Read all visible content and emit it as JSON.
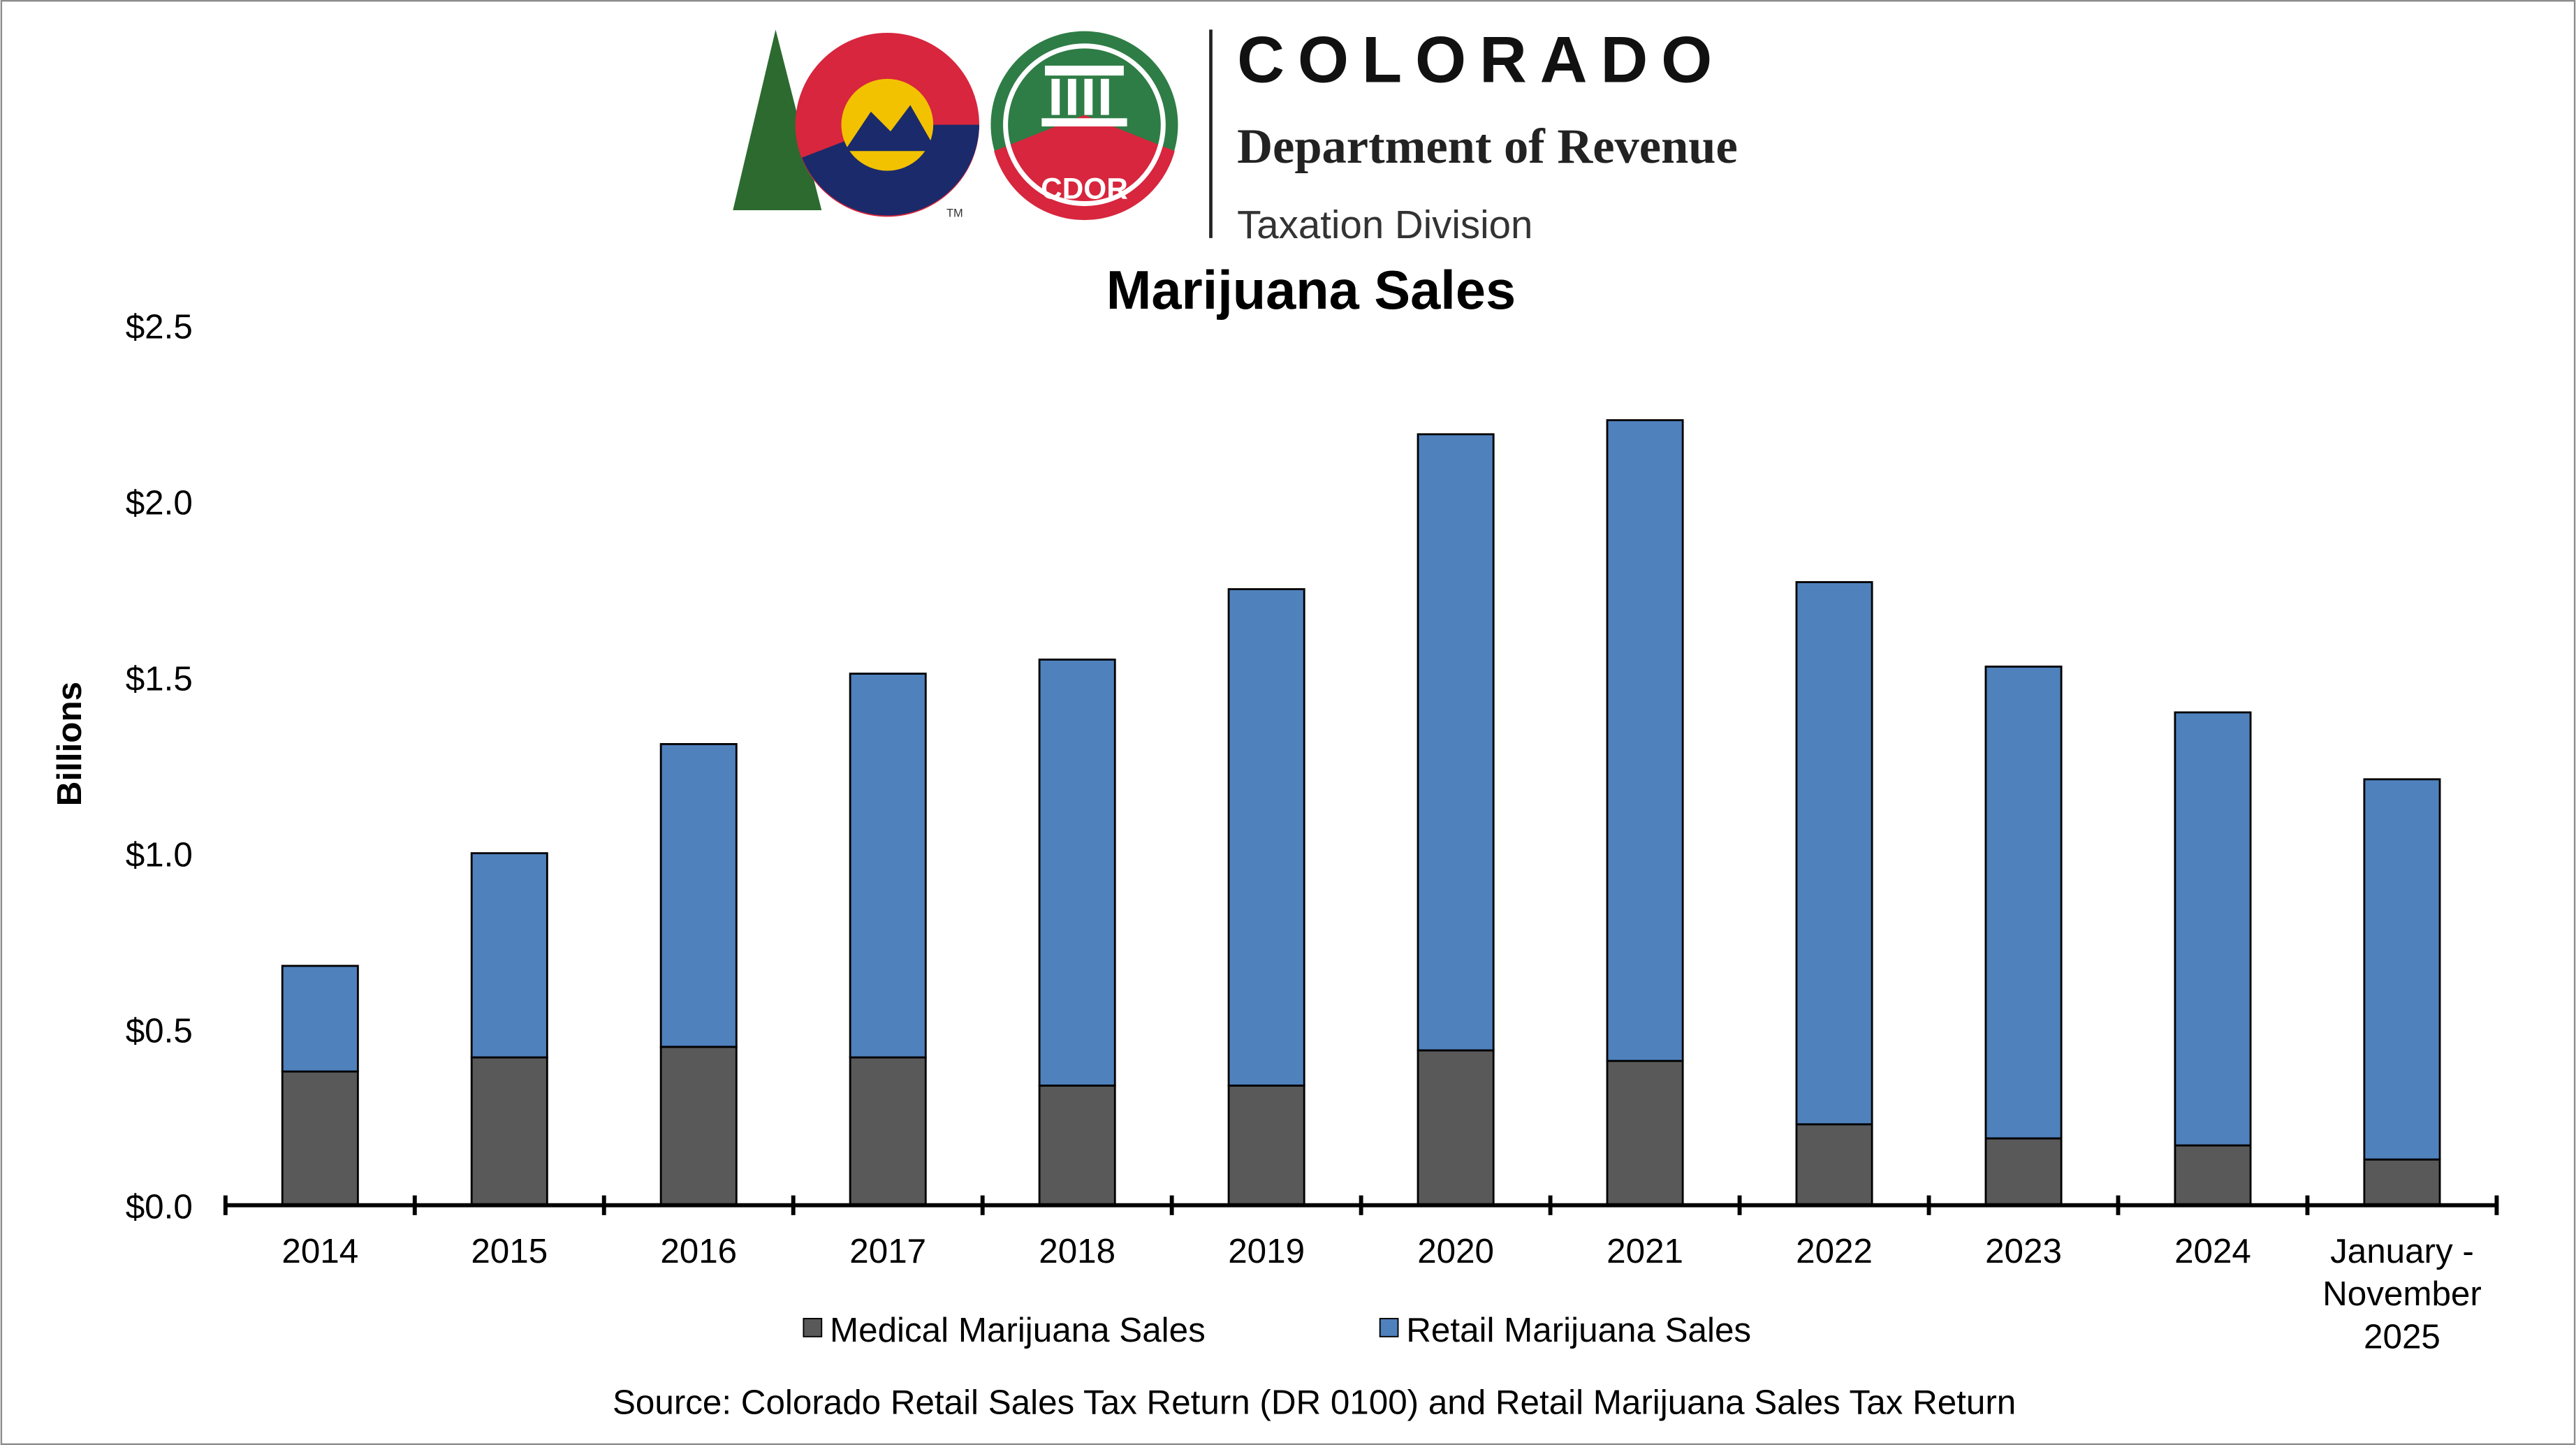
{
  "header": {
    "org_name": "COLORADO",
    "department": "Department of Revenue",
    "division": "Taxation Division",
    "badge_text": "CDOR",
    "trademark": "TM"
  },
  "chart_data": {
    "type": "bar",
    "stacked": true,
    "title": "Marijuana Sales",
    "ylabel": "Billions",
    "xlabel": "",
    "ylim": [
      0,
      2.5
    ],
    "yticks": [
      "$0.0",
      "$0.5",
      "$1.0",
      "$1.5",
      "$2.0",
      "$2.5"
    ],
    "ytick_values": [
      0,
      0.5,
      1.0,
      1.5,
      2.0,
      2.5
    ],
    "grid": false,
    "legend_position": "bottom",
    "categories": [
      "2014",
      "2015",
      "2016",
      "2017",
      "2018",
      "2019",
      "2020",
      "2021",
      "2022",
      "2023",
      "2024",
      "January - November 2025"
    ],
    "category_lines": [
      [
        "2014"
      ],
      [
        "2015"
      ],
      [
        "2016"
      ],
      [
        "2017"
      ],
      [
        "2018"
      ],
      [
        "2019"
      ],
      [
        "2020"
      ],
      [
        "2021"
      ],
      [
        "2022"
      ],
      [
        "2023"
      ],
      [
        "2024"
      ],
      [
        "January -",
        "November",
        "2025"
      ]
    ],
    "series": [
      {
        "name": "Medical Marijuana Sales",
        "color": "#595959",
        "values": [
          0.38,
          0.42,
          0.45,
          0.42,
          0.34,
          0.34,
          0.44,
          0.41,
          0.23,
          0.19,
          0.17,
          0.13
        ]
      },
      {
        "name": "Retail Marijuana Sales",
        "color": "#4f81bd",
        "values": [
          0.3,
          0.58,
          0.86,
          1.09,
          1.21,
          1.41,
          1.75,
          1.82,
          1.54,
          1.34,
          1.23,
          1.08
        ]
      }
    ],
    "source": "Source: Colorado Retail Sales Tax Return (DR 0100) and Retail Marijuana Sales Tax Return"
  }
}
